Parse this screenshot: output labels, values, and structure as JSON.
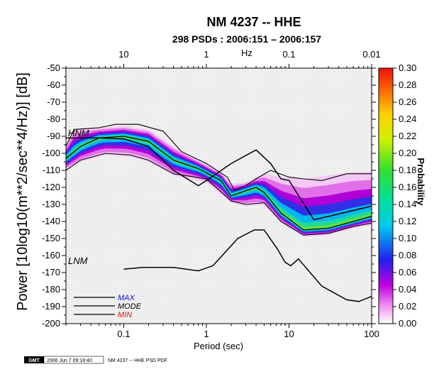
{
  "chart_data": {
    "type": "heatmap",
    "title": "NM 4237 -- HHE",
    "subtitle": "298 PSDs : 2006:151 – 2006:157",
    "xlabel": "Period (sec)",
    "ylabel": "Power [10log10(m**2/sec**4/Hz)] [dB]",
    "top_axis_label": "Hz",
    "colorbar_label": "Probability",
    "x_scale": "log",
    "xlim": [
      0.02,
      100
    ],
    "ylim": [
      -200,
      -50
    ],
    "x_ticks": [
      {
        "value": 0.1,
        "label": "0.1"
      },
      {
        "value": 1,
        "label": "1"
      },
      {
        "value": 10,
        "label": "10"
      },
      {
        "value": 100,
        "label": "100"
      }
    ],
    "top_ticks": [
      {
        "value": 0.1,
        "label": "10"
      },
      {
        "value": 1,
        "label": "1"
      },
      {
        "value": 10,
        "label": "0.1"
      },
      {
        "value": 100,
        "label": "0.01"
      }
    ],
    "y_ticks": [
      -50,
      -60,
      -70,
      -80,
      -90,
      -100,
      -110,
      -120,
      -130,
      -140,
      -150,
      -160,
      -170,
      -180,
      -190,
      -200
    ],
    "colorbar_range": [
      0.0,
      0.3
    ],
    "colorbar_ticks": [
      "0.30",
      "0.28",
      "0.26",
      "0.24",
      "0.22",
      "0.20",
      "0.18",
      "0.16",
      "0.14",
      "0.12",
      "0.10",
      "0.08",
      "0.06",
      "0.04",
      "0.02",
      "0.00"
    ],
    "noise_models": [
      {
        "name": "NHNM",
        "label": "HNM",
        "color": "#000000",
        "points": [
          [
            0.02,
            -91
          ],
          [
            0.05,
            -91
          ],
          [
            0.1,
            -91.5
          ],
          [
            0.2,
            -96
          ],
          [
            0.4,
            -110
          ],
          [
            0.8,
            -119
          ],
          [
            1,
            -116
          ],
          [
            2,
            -106
          ],
          [
            4,
            -98
          ],
          [
            6,
            -106
          ],
          [
            8,
            -115
          ],
          [
            10,
            -116
          ],
          [
            20,
            -139
          ],
          [
            100,
            -131
          ]
        ]
      },
      {
        "name": "NLNM",
        "label": "LNM",
        "color": "#000000",
        "points": [
          [
            0.1,
            -168
          ],
          [
            0.17,
            -167
          ],
          [
            0.4,
            -167
          ],
          [
            0.8,
            -169
          ],
          [
            1.2,
            -166
          ],
          [
            2.4,
            -150
          ],
          [
            3.8,
            -145
          ],
          [
            5,
            -145
          ],
          [
            7.2,
            -156
          ],
          [
            9,
            -164
          ],
          [
            10.5,
            -166
          ],
          [
            13,
            -162
          ],
          [
            25,
            -178
          ],
          [
            50,
            -186
          ],
          [
            70,
            -187
          ],
          [
            100,
            -184
          ]
        ]
      }
    ],
    "pdf_statistics": [
      {
        "name": "MAX",
        "color": "#000000",
        "points": [
          [
            0.02,
            -96
          ],
          [
            0.025,
            -86
          ],
          [
            0.05,
            -85
          ],
          [
            0.08,
            -83
          ],
          [
            0.15,
            -83
          ],
          [
            0.3,
            -87
          ],
          [
            0.5,
            -99
          ],
          [
            1,
            -106
          ],
          [
            1.8,
            -114
          ],
          [
            2.2,
            -122
          ],
          [
            3,
            -119
          ],
          [
            4,
            -115
          ],
          [
            6,
            -110
          ],
          [
            10,
            -114
          ],
          [
            15,
            -115
          ],
          [
            25,
            -116
          ],
          [
            50,
            -112
          ],
          [
            100,
            -112
          ]
        ]
      },
      {
        "name": "MODE",
        "color": "#000000",
        "points": [
          [
            0.02,
            -103
          ],
          [
            0.03,
            -96
          ],
          [
            0.05,
            -91
          ],
          [
            0.1,
            -90
          ],
          [
            0.2,
            -93
          ],
          [
            0.4,
            -104
          ],
          [
            0.8,
            -109
          ],
          [
            1.5,
            -116
          ],
          [
            2,
            -125
          ],
          [
            3,
            -122
          ],
          [
            4,
            -120
          ],
          [
            5,
            -123
          ],
          [
            8,
            -135
          ],
          [
            15,
            -145
          ],
          [
            30,
            -144
          ],
          [
            60,
            -140
          ],
          [
            100,
            -137
          ]
        ]
      },
      {
        "name": "MIN",
        "color": "#000000",
        "points": [
          [
            0.02,
            -110
          ],
          [
            0.03,
            -104
          ],
          [
            0.06,
            -100
          ],
          [
            0.12,
            -101
          ],
          [
            0.2,
            -104
          ],
          [
            0.4,
            -112
          ],
          [
            1,
            -115
          ],
          [
            2,
            -128
          ],
          [
            3,
            -130
          ],
          [
            5,
            -129
          ],
          [
            8,
            -140
          ],
          [
            15,
            -148
          ],
          [
            30,
            -147
          ],
          [
            60,
            -143
          ],
          [
            100,
            -141
          ]
        ]
      }
    ],
    "density_band": {
      "upper": [
        [
          0.02,
          -96
        ],
        [
          0.025,
          -86
        ],
        [
          0.05,
          -85
        ],
        [
          0.1,
          -84
        ],
        [
          0.2,
          -86
        ],
        [
          0.4,
          -96
        ],
        [
          0.8,
          -104
        ],
        [
          1.5,
          -111
        ],
        [
          2,
          -118
        ],
        [
          3,
          -117
        ],
        [
          5,
          -112
        ],
        [
          8,
          -114
        ],
        [
          15,
          -115
        ],
        [
          30,
          -113
        ],
        [
          60,
          -111
        ],
        [
          100,
          -111
        ]
      ],
      "lower": [
        [
          0.02,
          -110
        ],
        [
          0.03,
          -105
        ],
        [
          0.06,
          -101
        ],
        [
          0.12,
          -102
        ],
        [
          0.2,
          -105
        ],
        [
          0.4,
          -113
        ],
        [
          1,
          -117
        ],
        [
          2,
          -129
        ],
        [
          3,
          -131
        ],
        [
          5,
          -130
        ],
        [
          8,
          -141
        ],
        [
          15,
          -149
        ],
        [
          30,
          -148
        ],
        [
          60,
          -144
        ],
        [
          100,
          -142
        ]
      ],
      "mode": [
        [
          0.02,
          -103
        ],
        [
          0.03,
          -96
        ],
        [
          0.05,
          -91
        ],
        [
          0.1,
          -90
        ],
        [
          0.2,
          -93
        ],
        [
          0.4,
          -104
        ],
        [
          0.8,
          -109
        ],
        [
          1.5,
          -116
        ],
        [
          2,
          -125
        ],
        [
          3,
          -122
        ],
        [
          4,
          -120
        ],
        [
          5,
          -123
        ],
        [
          8,
          -135
        ],
        [
          15,
          -145
        ],
        [
          30,
          -144
        ],
        [
          60,
          -140
        ],
        [
          100,
          -137
        ]
      ]
    },
    "legend": {
      "placement": "bottom-left",
      "entries": [
        {
          "label": "MAX",
          "color": "#1010d0"
        },
        {
          "label": "MODE",
          "color": "#000000"
        },
        {
          "label": "MIN",
          "color": "#e01010"
        }
      ]
    }
  },
  "footer": {
    "logo": "GMT",
    "timestamp": "2006 Jun  7 09:18:40",
    "caption": "NM 4237 -- HHE PSD PDF"
  }
}
